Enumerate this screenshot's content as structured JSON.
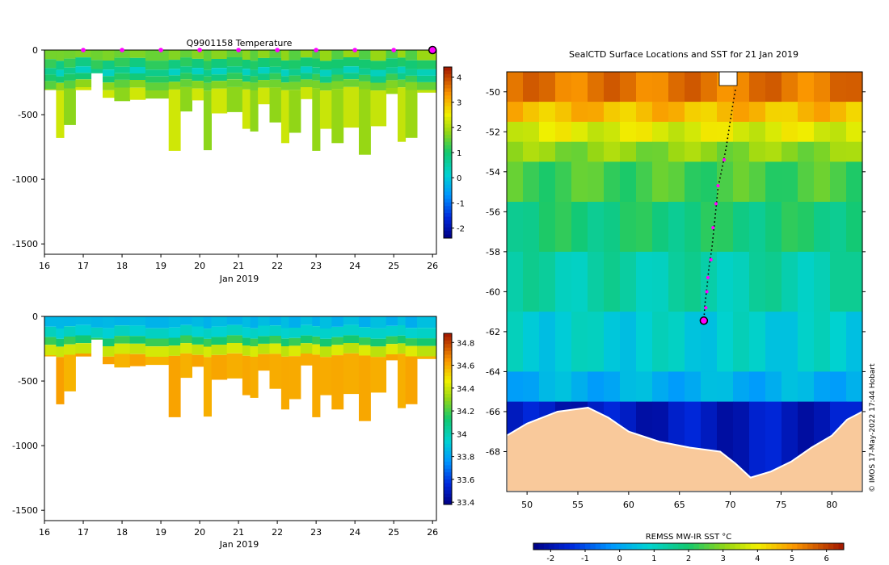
{
  "colors": {
    "ice_dark_blue": "#00008b",
    "land": "#f9c99b",
    "marker_magenta": "#ff00ff",
    "track_black": "#000000"
  },
  "credit": "© IMOS 17-May-2022 17:44 Hobart",
  "chart_data": [
    {
      "id": "temperature",
      "type": "heatmap",
      "title": "Q9901158  Temperature",
      "xlabel": "Jan 2019",
      "ylabel": "",
      "x_ticks": [
        16,
        17,
        18,
        19,
        20,
        21,
        22,
        23,
        24,
        25,
        26
      ],
      "xlim": [
        16,
        26.1
      ],
      "y_ticks": [
        0,
        -500,
        -1000,
        -1500
      ],
      "ylim": [
        -1580,
        0
      ],
      "colorbar": {
        "min": -2.4,
        "max": 4.4,
        "ticks": [
          4,
          3,
          2,
          1,
          0,
          -1,
          -2
        ]
      },
      "profile_markers_days": [
        17,
        18,
        19,
        20,
        21,
        22,
        23,
        24,
        25
      ],
      "current_marker_day": 26,
      "profiles": [
        {
          "t0": 16.0,
          "t1": 16.3,
          "depth": 310
        },
        {
          "t0": 16.3,
          "t1": 16.5,
          "depth": 680
        },
        {
          "t0": 16.5,
          "t1": 16.8,
          "depth": 580
        },
        {
          "t0": 16.8,
          "t1": 17.2,
          "depth": 310
        },
        {
          "t0": 17.2,
          "t1": 17.5,
          "depth": 180
        },
        {
          "t0": 17.5,
          "t1": 17.8,
          "depth": 370
        },
        {
          "t0": 17.8,
          "t1": 18.2,
          "depth": 395
        },
        {
          "t0": 18.2,
          "t1": 18.6,
          "depth": 385
        },
        {
          "t0": 18.6,
          "t1": 19.2,
          "depth": 375
        },
        {
          "t0": 19.2,
          "t1": 19.5,
          "depth": 780
        },
        {
          "t0": 19.5,
          "t1": 19.8,
          "depth": 475
        },
        {
          "t0": 19.8,
          "t1": 20.1,
          "depth": 390
        },
        {
          "t0": 20.1,
          "t1": 20.3,
          "depth": 775
        },
        {
          "t0": 20.3,
          "t1": 20.7,
          "depth": 490
        },
        {
          "t0": 20.7,
          "t1": 21.1,
          "depth": 480
        },
        {
          "t0": 21.1,
          "t1": 21.3,
          "depth": 610
        },
        {
          "t0": 21.3,
          "t1": 21.5,
          "depth": 630
        },
        {
          "t0": 21.5,
          "t1": 21.8,
          "depth": 420
        },
        {
          "t0": 21.8,
          "t1": 22.1,
          "depth": 560
        },
        {
          "t0": 22.1,
          "t1": 22.3,
          "depth": 720
        },
        {
          "t0": 22.3,
          "t1": 22.6,
          "depth": 640
        },
        {
          "t0": 22.6,
          "t1": 22.9,
          "depth": 380
        },
        {
          "t0": 22.9,
          "t1": 23.1,
          "depth": 780
        },
        {
          "t0": 23.1,
          "t1": 23.4,
          "depth": 610
        },
        {
          "t0": 23.4,
          "t1": 23.7,
          "depth": 720
        },
        {
          "t0": 23.7,
          "t1": 24.1,
          "depth": 600
        },
        {
          "t0": 24.1,
          "t1": 24.4,
          "depth": 810
        },
        {
          "t0": 24.4,
          "t1": 24.8,
          "depth": 590
        },
        {
          "t0": 24.8,
          "t1": 25.1,
          "depth": 340
        },
        {
          "t0": 25.1,
          "t1": 25.3,
          "depth": 710
        },
        {
          "t0": 25.3,
          "t1": 25.6,
          "depth": 680
        },
        {
          "t0": 25.6,
          "t1": 26.1,
          "depth": 330
        }
      ],
      "layers": [
        {
          "top": 0,
          "bottom": 70,
          "value": 1.6
        },
        {
          "top": 70,
          "bottom": 140,
          "value": 1.0
        },
        {
          "top": 140,
          "bottom": 190,
          "value": 0.5
        },
        {
          "top": 190,
          "bottom": 240,
          "value": 1.0
        },
        {
          "top": 240,
          "bottom": 300,
          "value": 1.6
        },
        {
          "top": 300,
          "bottom": 2000,
          "value": 2.0
        }
      ]
    },
    {
      "id": "salinity",
      "type": "heatmap",
      "title": "",
      "xlabel": "Jan 2019",
      "ylabel": "",
      "x_ticks": [
        16,
        17,
        18,
        19,
        20,
        21,
        22,
        23,
        24,
        25,
        26
      ],
      "xlim": [
        16,
        26.1
      ],
      "y_ticks": [
        0,
        -500,
        -1000,
        -1500
      ],
      "ylim": [
        -1580,
        0
      ],
      "colorbar": {
        "min": 33.38,
        "max": 34.88,
        "ticks": [
          34.8,
          34.6,
          34.4,
          34.2,
          34,
          33.8,
          33.6,
          33.4
        ]
      },
      "layers": [
        {
          "top": 0,
          "bottom": 80,
          "value": 33.85
        },
        {
          "top": 80,
          "bottom": 160,
          "value": 33.95
        },
        {
          "top": 160,
          "bottom": 220,
          "value": 34.15
        },
        {
          "top": 220,
          "bottom": 300,
          "value": 34.4
        },
        {
          "top": 300,
          "bottom": 2000,
          "value": 34.6
        }
      ]
    },
    {
      "id": "sst_map",
      "type": "heatmap",
      "title": "SealCTD Surface Locations and SST for 21 Jan 2019",
      "xlabel": "",
      "ylabel": "",
      "x_ticks": [
        50,
        55,
        60,
        65,
        70,
        75,
        80
      ],
      "xlim": [
        48,
        83
      ],
      "y_ticks": [
        -50,
        -52,
        -54,
        -56,
        -58,
        -60,
        -62,
        -64,
        -66,
        -68
      ],
      "ylim": [
        -70,
        -49
      ],
      "colorbar": {
        "label": "REMSS MW-IR SST °C",
        "min": -2.5,
        "max": 6.5,
        "ticks": [
          -2,
          -1,
          0,
          1,
          2,
          3,
          4,
          5,
          6
        ]
      },
      "sst_bands": [
        {
          "lat_top": -49,
          "lat_bottom": -50.5,
          "value": 5.4
        },
        {
          "lat_top": -50.5,
          "lat_bottom": -51.5,
          "value": 4.6
        },
        {
          "lat_top": -51.5,
          "lat_bottom": -52.5,
          "value": 3.8
        },
        {
          "lat_top": -52.5,
          "lat_bottom": -53.5,
          "value": 3.0
        },
        {
          "lat_top": -53.5,
          "lat_bottom": -55.5,
          "value": 2.4
        },
        {
          "lat_top": -55.5,
          "lat_bottom": -58,
          "value": 1.9
        },
        {
          "lat_top": -58,
          "lat_bottom": -61,
          "value": 1.3
        },
        {
          "lat_top": -61,
          "lat_bottom": -64,
          "value": 0.8
        },
        {
          "lat_top": -64,
          "lat_bottom": -65.5,
          "value": 0.2
        },
        {
          "lat_top": -65.5,
          "lat_bottom": -70,
          "value": -1.8
        }
      ],
      "track": [
        {
          "lon": 70.5,
          "lat": -49.9
        },
        {
          "lon": 70.2,
          "lat": -50.8
        },
        {
          "lon": 69.9,
          "lat": -51.8
        },
        {
          "lon": 69.6,
          "lat": -52.8
        },
        {
          "lon": 69.2,
          "lat": -53.8
        },
        {
          "lon": 68.8,
          "lat": -54.8
        },
        {
          "lon": 68.6,
          "lat": -55.8
        },
        {
          "lon": 68.4,
          "lat": -56.8
        },
        {
          "lon": 68.2,
          "lat": -57.8
        },
        {
          "lon": 67.9,
          "lat": -58.8
        },
        {
          "lon": 67.7,
          "lat": -59.8
        },
        {
          "lon": 67.5,
          "lat": -60.7
        },
        {
          "lon": 67.4,
          "lat": -61.45
        }
      ],
      "track_markers": [
        {
          "lon": 69.4,
          "lat": -53.4
        },
        {
          "lon": 68.8,
          "lat": -54.7
        },
        {
          "lon": 68.6,
          "lat": -55.6
        },
        {
          "lon": 68.3,
          "lat": -56.8
        },
        {
          "lon": 68.1,
          "lat": -58.4
        },
        {
          "lon": 67.8,
          "lat": -59.3
        },
        {
          "lon": 67.7,
          "lat": -60.0
        },
        {
          "lon": 67.6,
          "lat": -60.8
        }
      ],
      "current_position": {
        "lon": 67.4,
        "lat": -61.45
      },
      "land_outline": [
        {
          "lon": 48,
          "lat": -67.2
        },
        {
          "lon": 50,
          "lat": -66.6
        },
        {
          "lon": 53,
          "lat": -66.0
        },
        {
          "lon": 56,
          "lat": -65.8
        },
        {
          "lon": 58,
          "lat": -66.3
        },
        {
          "lon": 60,
          "lat": -67.0
        },
        {
          "lon": 63,
          "lat": -67.5
        },
        {
          "lon": 66,
          "lat": -67.8
        },
        {
          "lon": 69,
          "lat": -68.0
        },
        {
          "lon": 70.5,
          "lat": -68.6
        },
        {
          "lon": 72,
          "lat": -69.3
        },
        {
          "lon": 74,
          "lat": -69.0
        },
        {
          "lon": 76,
          "lat": -68.5
        },
        {
          "lon": 78,
          "lat": -67.8
        },
        {
          "lon": 80,
          "lat": -67.2
        },
        {
          "lon": 81.5,
          "lat": -66.4
        },
        {
          "lon": 83,
          "lat": -66.0
        }
      ]
    }
  ]
}
